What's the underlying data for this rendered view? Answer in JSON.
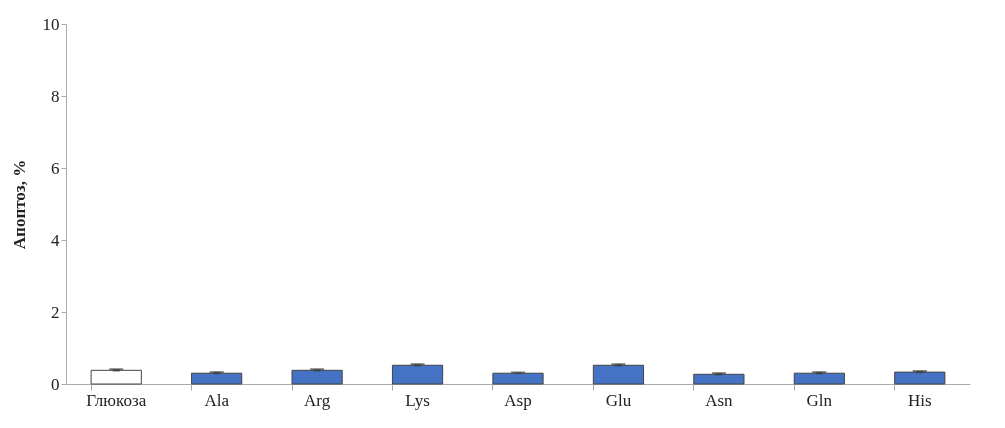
{
  "chart_data": {
    "type": "bar",
    "ylabel": "Апоптоз, %",
    "categories": [
      "Глюкоза",
      "Ala",
      "Arg",
      "Lys",
      "Asp",
      "Glu",
      "Asn",
      "Gln",
      "His"
    ],
    "values": [
      0.38,
      0.3,
      0.38,
      0.52,
      0.3,
      0.52,
      0.27,
      0.3,
      0.33
    ],
    "colors": [
      "#ffffff",
      "#4472c4",
      "#4472c4",
      "#4472c4",
      "#4472c4",
      "#4472c4",
      "#4472c4",
      "#4472c4",
      "#4472c4"
    ],
    "errors": [
      0.03,
      0.03,
      0.03,
      0.03,
      0.02,
      0.03,
      0.03,
      0.03,
      0.03
    ],
    "ylim": [
      0,
      10
    ],
    "yticks": [
      0,
      2,
      4,
      6,
      8,
      10
    ],
    "grid": false
  }
}
